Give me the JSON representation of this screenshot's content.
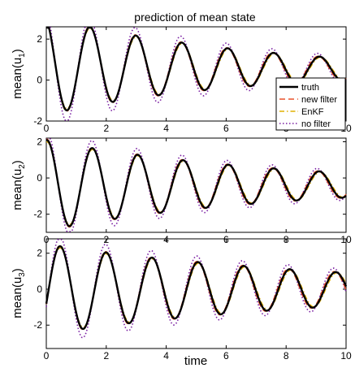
{
  "chart_data": [
    {
      "type": "line",
      "title": "prediction of mean state",
      "ylabel": "mean(u",
      "ylabel_sub": "1",
      "ylabel_close": ")",
      "xlabel": "",
      "xlim": [
        0,
        10
      ],
      "ylim": [
        -2,
        2.6
      ],
      "yticks": [
        -2,
        0,
        2
      ],
      "xticks": [
        0,
        2,
        4,
        6,
        8,
        10
      ],
      "grid": false,
      "legend_placement": "right",
      "model": {
        "A": 2.4,
        "omega": 4.1,
        "phase": 0.3,
        "decay": 0.15,
        "offset": 0.7,
        "offset_rate": 0.03
      },
      "series": [
        {
          "name": "truth",
          "color": "#000000",
          "style": "solid",
          "amp_scale": 1.0,
          "phase_shift": 0.0
        },
        {
          "name": "new filter",
          "color": "#e8522b",
          "style": "dashed",
          "amp_scale": 1.02,
          "phase_shift": 0.02
        },
        {
          "name": "EnKF",
          "color": "#e0b000",
          "style": "dashdot",
          "amp_scale": 0.96,
          "phase_shift": -0.02
        },
        {
          "name": "no filter",
          "color": "#7a1fa2",
          "style": "dotted",
          "amp_scale": 1.25,
          "phase_shift": 0.03
        }
      ]
    },
    {
      "type": "line",
      "title": "",
      "ylabel": "mean(u",
      "ylabel_sub": "2",
      "ylabel_close": ")",
      "xlabel": "",
      "xlim": [
        0,
        10
      ],
      "ylim": [
        -3,
        2.2
      ],
      "yticks": [
        -2,
        0,
        2
      ],
      "xticks": [
        0,
        2,
        4,
        6,
        8,
        10
      ],
      "grid": false,
      "model": {
        "A": 2.5,
        "omega": 4.15,
        "phase": -0.1,
        "decay": 0.13,
        "offset": -0.4,
        "offset_rate": 0.0
      },
      "series": [
        {
          "name": "truth",
          "color": "#000000",
          "style": "solid",
          "amp_scale": 1.0,
          "phase_shift": 0.0
        },
        {
          "name": "new filter",
          "color": "#e8522b",
          "style": "dashed",
          "amp_scale": 1.02,
          "phase_shift": 0.02
        },
        {
          "name": "EnKF",
          "color": "#e0b000",
          "style": "dashdot",
          "amp_scale": 0.96,
          "phase_shift": -0.02
        },
        {
          "name": "no filter",
          "color": "#7a1fa2",
          "style": "dotted",
          "amp_scale": 1.2,
          "phase_shift": 0.03
        }
      ]
    },
    {
      "type": "line",
      "title": "",
      "ylabel": "mean(u",
      "ylabel_sub": "3",
      "ylabel_close": ")",
      "xlabel": "time",
      "xlim": [
        0,
        10
      ],
      "ylim": [
        -3.3,
        2.8
      ],
      "yticks": [
        -2,
        0,
        2
      ],
      "xticks": [
        0,
        2,
        4,
        6,
        8,
        10
      ],
      "grid": false,
      "model": {
        "A": 2.5,
        "omega": 4.1,
        "phase": -1.9,
        "decay": 0.1,
        "offset": 0.0,
        "offset_rate": 0.0
      },
      "series": [
        {
          "name": "truth",
          "color": "#000000",
          "style": "solid",
          "amp_scale": 1.0,
          "phase_shift": 0.0
        },
        {
          "name": "new filter",
          "color": "#e8522b",
          "style": "dashed",
          "amp_scale": 1.02,
          "phase_shift": 0.02
        },
        {
          "name": "EnKF",
          "color": "#e0b000",
          "style": "dashdot",
          "amp_scale": 0.96,
          "phase_shift": -0.02
        },
        {
          "name": "no filter",
          "color": "#7a1fa2",
          "style": "dotted",
          "amp_scale": 1.22,
          "phase_shift": 0.03
        }
      ]
    }
  ]
}
